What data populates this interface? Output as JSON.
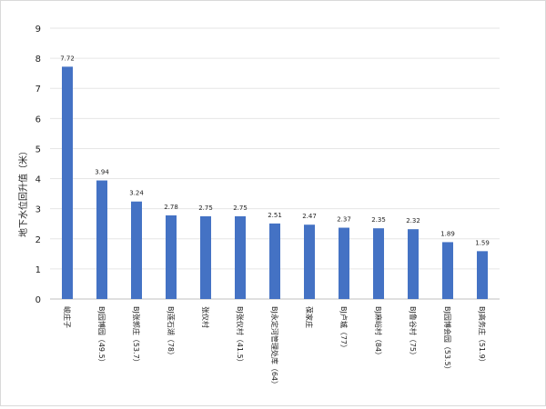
{
  "chart_data": {
    "type": "bar",
    "ylabel": "地下水位回升值（米）",
    "ylim": [
      0,
      9
    ],
    "yticks": [
      0,
      1,
      2,
      3,
      4,
      5,
      6,
      7,
      8,
      9
    ],
    "grid": true,
    "legend": "none",
    "bar_color": "#4472C4",
    "categories": [
      "峻庄子",
      "BJ园博园（49.5）",
      "BJ张郭庄（53.7）",
      "BJ莲石湖（78）",
      "张仪村",
      "BJ张仪村（41.5）",
      "BJ永定河管理处库（64）",
      "葆家庄",
      "BJ卢城（77）",
      "BJ麻峪村（84）",
      "BJ鲁谷村（75）",
      "BJ园博会园（53.5）",
      "BJ高务庄（51.9）"
    ],
    "values": [
      7.72,
      3.94,
      3.24,
      2.78,
      2.75,
      2.75,
      2.51,
      2.47,
      2.37,
      2.35,
      2.32,
      1.89,
      1.59
    ],
    "value_labels": [
      "7.72",
      "3.94",
      "3.24",
      "2.78",
      "2.75",
      "2.75",
      "2.51",
      "2.47",
      "2.37",
      "2.35",
      "2.32",
      "1.89",
      "1.59"
    ]
  }
}
